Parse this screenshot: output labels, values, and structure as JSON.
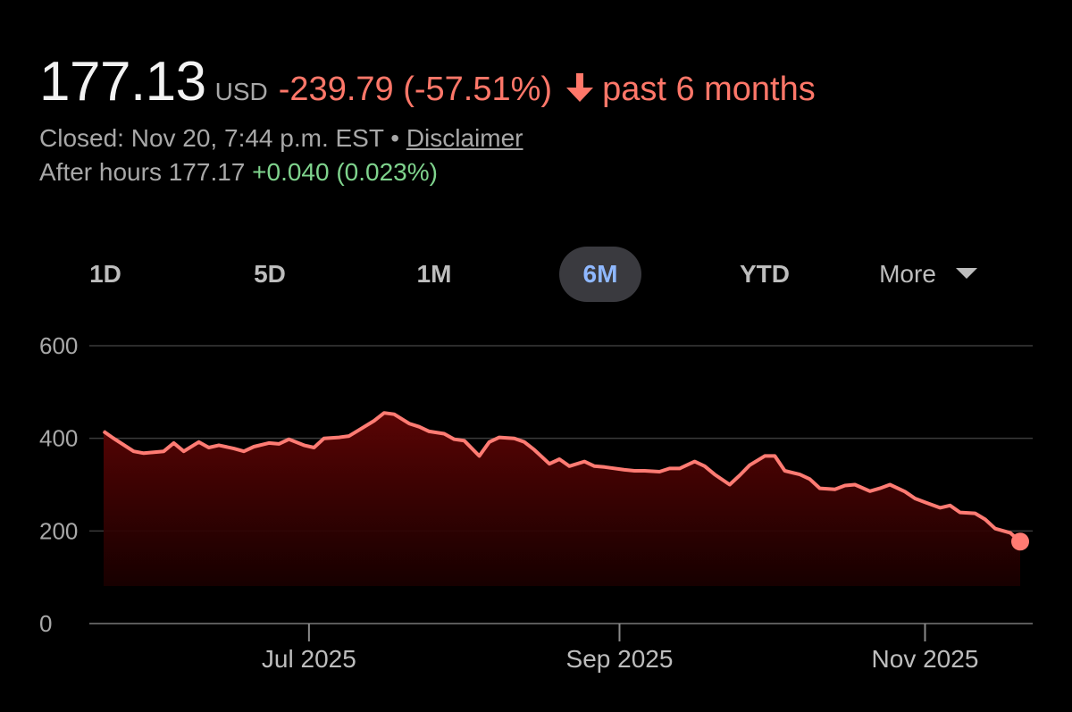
{
  "quote": {
    "price": "177.13",
    "currency": "USD",
    "change": "-239.79 (-57.51%)",
    "period": "past 6 months",
    "closed": "Closed: Nov 20, 7:44 p.m. EST",
    "separator": "•",
    "disclaimer": "Disclaimer",
    "after_hours_label": "After hours 177.17",
    "after_hours_change": "+0.040 (0.023%)"
  },
  "ranges": [
    "1D",
    "5D",
    "1M",
    "6M",
    "YTD"
  ],
  "active_range": "6M",
  "more_label": "More",
  "colors": {
    "negative": "#ff7769",
    "positive": "#7fd38d",
    "active_range": "#8fb8ff",
    "line": "#ff7b73",
    "fill_top": "#5a0404"
  },
  "chart_data": {
    "type": "area",
    "title": "",
    "xlabel": "",
    "ylabel": "",
    "ylim": [
      0,
      600
    ],
    "yticks": [
      "0",
      "200",
      "400",
      "600"
    ],
    "grid": true,
    "xticks": [
      {
        "label": "Jul 2025",
        "x": "2025-07-01"
      },
      {
        "label": "Sep 2025",
        "x": "2025-09-01"
      },
      {
        "label": "Nov 2025",
        "x": "2025-11-01"
      }
    ],
    "series": [
      {
        "x": [
          "2025-05-21",
          "2025-05-23",
          "2025-05-27",
          "2025-05-29",
          "2025-06-02",
          "2025-06-04",
          "2025-06-06",
          "2025-06-09",
          "2025-06-11",
          "2025-06-13",
          "2025-06-16",
          "2025-06-18",
          "2025-06-20",
          "2025-06-23",
          "2025-06-25",
          "2025-06-27",
          "2025-06-30",
          "2025-07-02",
          "2025-07-04",
          "2025-07-07",
          "2025-07-09",
          "2025-07-11",
          "2025-07-14",
          "2025-07-16",
          "2025-07-18",
          "2025-07-21",
          "2025-07-23",
          "2025-07-25",
          "2025-07-28",
          "2025-07-30",
          "2025-08-01",
          "2025-08-04",
          "2025-08-06",
          "2025-08-08",
          "2025-08-11",
          "2025-08-13",
          "2025-08-15",
          "2025-08-18",
          "2025-08-20",
          "2025-08-22",
          "2025-08-25",
          "2025-08-27",
          "2025-08-29",
          "2025-09-02",
          "2025-09-04",
          "2025-09-06",
          "2025-09-09",
          "2025-09-11",
          "2025-09-13",
          "2025-09-16",
          "2025-09-18",
          "2025-09-20",
          "2025-09-23",
          "2025-09-25",
          "2025-09-27",
          "2025-09-30",
          "2025-10-02",
          "2025-10-04",
          "2025-10-07",
          "2025-10-09",
          "2025-10-11",
          "2025-10-14",
          "2025-10-16",
          "2025-10-18",
          "2025-10-21",
          "2025-10-23",
          "2025-10-25",
          "2025-10-28",
          "2025-10-30",
          "2025-11-01",
          "2025-11-04",
          "2025-11-06",
          "2025-11-08",
          "2025-11-11",
          "2025-11-13",
          "2025-11-15",
          "2025-11-18",
          "2025-11-20"
        ],
        "values": [
          415,
          400,
          372,
          368,
          372,
          390,
          372,
          392,
          380,
          385,
          378,
          372,
          382,
          390,
          388,
          398,
          385,
          380,
          400,
          402,
          405,
          418,
          438,
          455,
          452,
          432,
          425,
          415,
          410,
          398,
          395,
          362,
          392,
          402,
          400,
          392,
          375,
          345,
          355,
          340,
          350,
          340,
          338,
          332,
          330,
          330,
          328,
          335,
          335,
          350,
          340,
          322,
          300,
          320,
          342,
          362,
          362,
          330,
          322,
          312,
          292,
          290,
          298,
          300,
          286,
          292,
          300,
          285,
          270,
          262,
          250,
          255,
          240,
          238,
          225,
          205,
          196,
          177
        ]
      }
    ]
  }
}
